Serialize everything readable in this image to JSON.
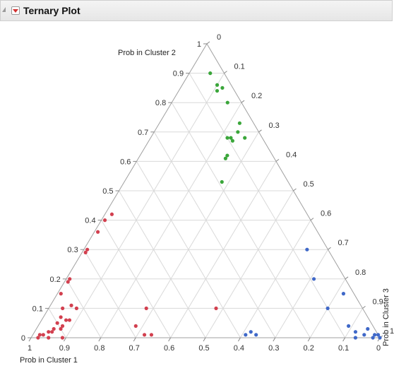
{
  "header": {
    "title": "Ternary Plot"
  },
  "chart_data": {
    "type": "scatter",
    "subtype": "ternary",
    "axes": {
      "cluster1": {
        "label": "Prob in Cluster 1",
        "ticks": [
          "1",
          "0.9",
          "0.8",
          "0.7",
          "0.6",
          "0.5",
          "0.4",
          "0.3",
          "0.2",
          "0.1",
          "0"
        ]
      },
      "cluster2": {
        "label": "Prob in Cluster 2",
        "ticks": [
          "0",
          "0.1",
          "0.2",
          "0.3",
          "0.4",
          "0.5",
          "0.6",
          "0.7",
          "0.8",
          "0.9",
          "1"
        ]
      },
      "cluster3": {
        "label": "Prob in Cluster 3",
        "ticks": [
          "0",
          "0.1",
          "0.2",
          "0.3",
          "0.4",
          "0.5",
          "0.6",
          "0.7",
          "0.8",
          "0.9",
          "1"
        ]
      },
      "range": [
        0,
        1
      ]
    },
    "grid": true,
    "colors": {
      "cluster1": "#d2404f",
      "cluster2": "#3aa63a",
      "cluster3": "#3f68c8"
    },
    "series": [
      {
        "cluster": "cluster2",
        "color": "#3aa63a",
        "points": [
          [
            0.04,
            0.9,
            0.06
          ],
          [
            0.03,
            0.85,
            0.12
          ],
          [
            0.04,
            0.86,
            0.1
          ],
          [
            0.05,
            0.84,
            0.11
          ],
          [
            0.04,
            0.8,
            0.16
          ],
          [
            0.04,
            0.73,
            0.23
          ],
          [
            0.06,
            0.7,
            0.24
          ],
          [
            0.09,
            0.68,
            0.23
          ],
          [
            0.09,
            0.67,
            0.24
          ],
          [
            0.1,
            0.68,
            0.22
          ],
          [
            0.05,
            0.68,
            0.27
          ],
          [
            0.13,
            0.62,
            0.25
          ],
          [
            0.14,
            0.61,
            0.25
          ],
          [
            0.19,
            0.53,
            0.28
          ]
        ]
      },
      {
        "cluster": "cluster1",
        "color": "#d2404f",
        "points": [
          [
            0.56,
            0.42,
            0.02
          ],
          [
            0.59,
            0.4,
            0.01
          ],
          [
            0.63,
            0.36,
            0.01
          ],
          [
            0.69,
            0.3,
            0.01
          ],
          [
            0.7,
            0.29,
            0.01
          ],
          [
            0.79,
            0.2,
            0.01
          ],
          [
            0.8,
            0.19,
            0.01
          ],
          [
            0.84,
            0.15,
            0.01
          ],
          [
            0.83,
            0.11,
            0.06
          ],
          [
            0.86,
            0.1,
            0.04
          ],
          [
            0.82,
            0.1,
            0.08
          ],
          [
            0.62,
            0.1,
            0.28
          ],
          [
            0.88,
            0.07,
            0.05
          ],
          [
            0.87,
            0.06,
            0.07
          ],
          [
            0.86,
            0.06,
            0.08
          ],
          [
            0.9,
            0.05,
            0.05
          ],
          [
            0.89,
            0.04,
            0.07
          ],
          [
            0.68,
            0.04,
            0.28
          ],
          [
            0.92,
            0.03,
            0.05
          ],
          [
            0.9,
            0.03,
            0.07
          ],
          [
            0.93,
            0.02,
            0.05
          ],
          [
            0.94,
            0.02,
            0.04
          ],
          [
            0.96,
            0.01,
            0.03
          ],
          [
            0.97,
            0.01,
            0.02
          ],
          [
            0.98,
            0.0,
            0.02
          ],
          [
            0.95,
            0.0,
            0.05
          ],
          [
            0.91,
            0.0,
            0.09
          ],
          [
            0.67,
            0.01,
            0.32
          ],
          [
            0.65,
            0.01,
            0.34
          ],
          [
            0.42,
            0.1,
            0.48
          ]
        ]
      },
      {
        "cluster": "cluster3",
        "color": "#3f68c8",
        "points": [
          [
            0.06,
            0.3,
            0.64
          ],
          [
            0.09,
            0.2,
            0.71
          ],
          [
            0.03,
            0.15,
            0.82
          ],
          [
            0.1,
            0.1,
            0.8
          ],
          [
            0.35,
            0.01,
            0.64
          ],
          [
            0.36,
            0.02,
            0.62
          ],
          [
            0.38,
            0.01,
            0.61
          ],
          [
            0.07,
            0.04,
            0.89
          ],
          [
            0.06,
            0.02,
            0.92
          ],
          [
            0.04,
            0.01,
            0.95
          ],
          [
            0.07,
            0.0,
            0.93
          ],
          [
            0.02,
            0.03,
            0.95
          ],
          [
            0.01,
            0.01,
            0.98
          ],
          [
            0.02,
            0.0,
            0.98
          ],
          [
            0.0,
            0.01,
            0.99
          ],
          [
            0.0,
            0.0,
            1.0
          ]
        ]
      }
    ]
  }
}
